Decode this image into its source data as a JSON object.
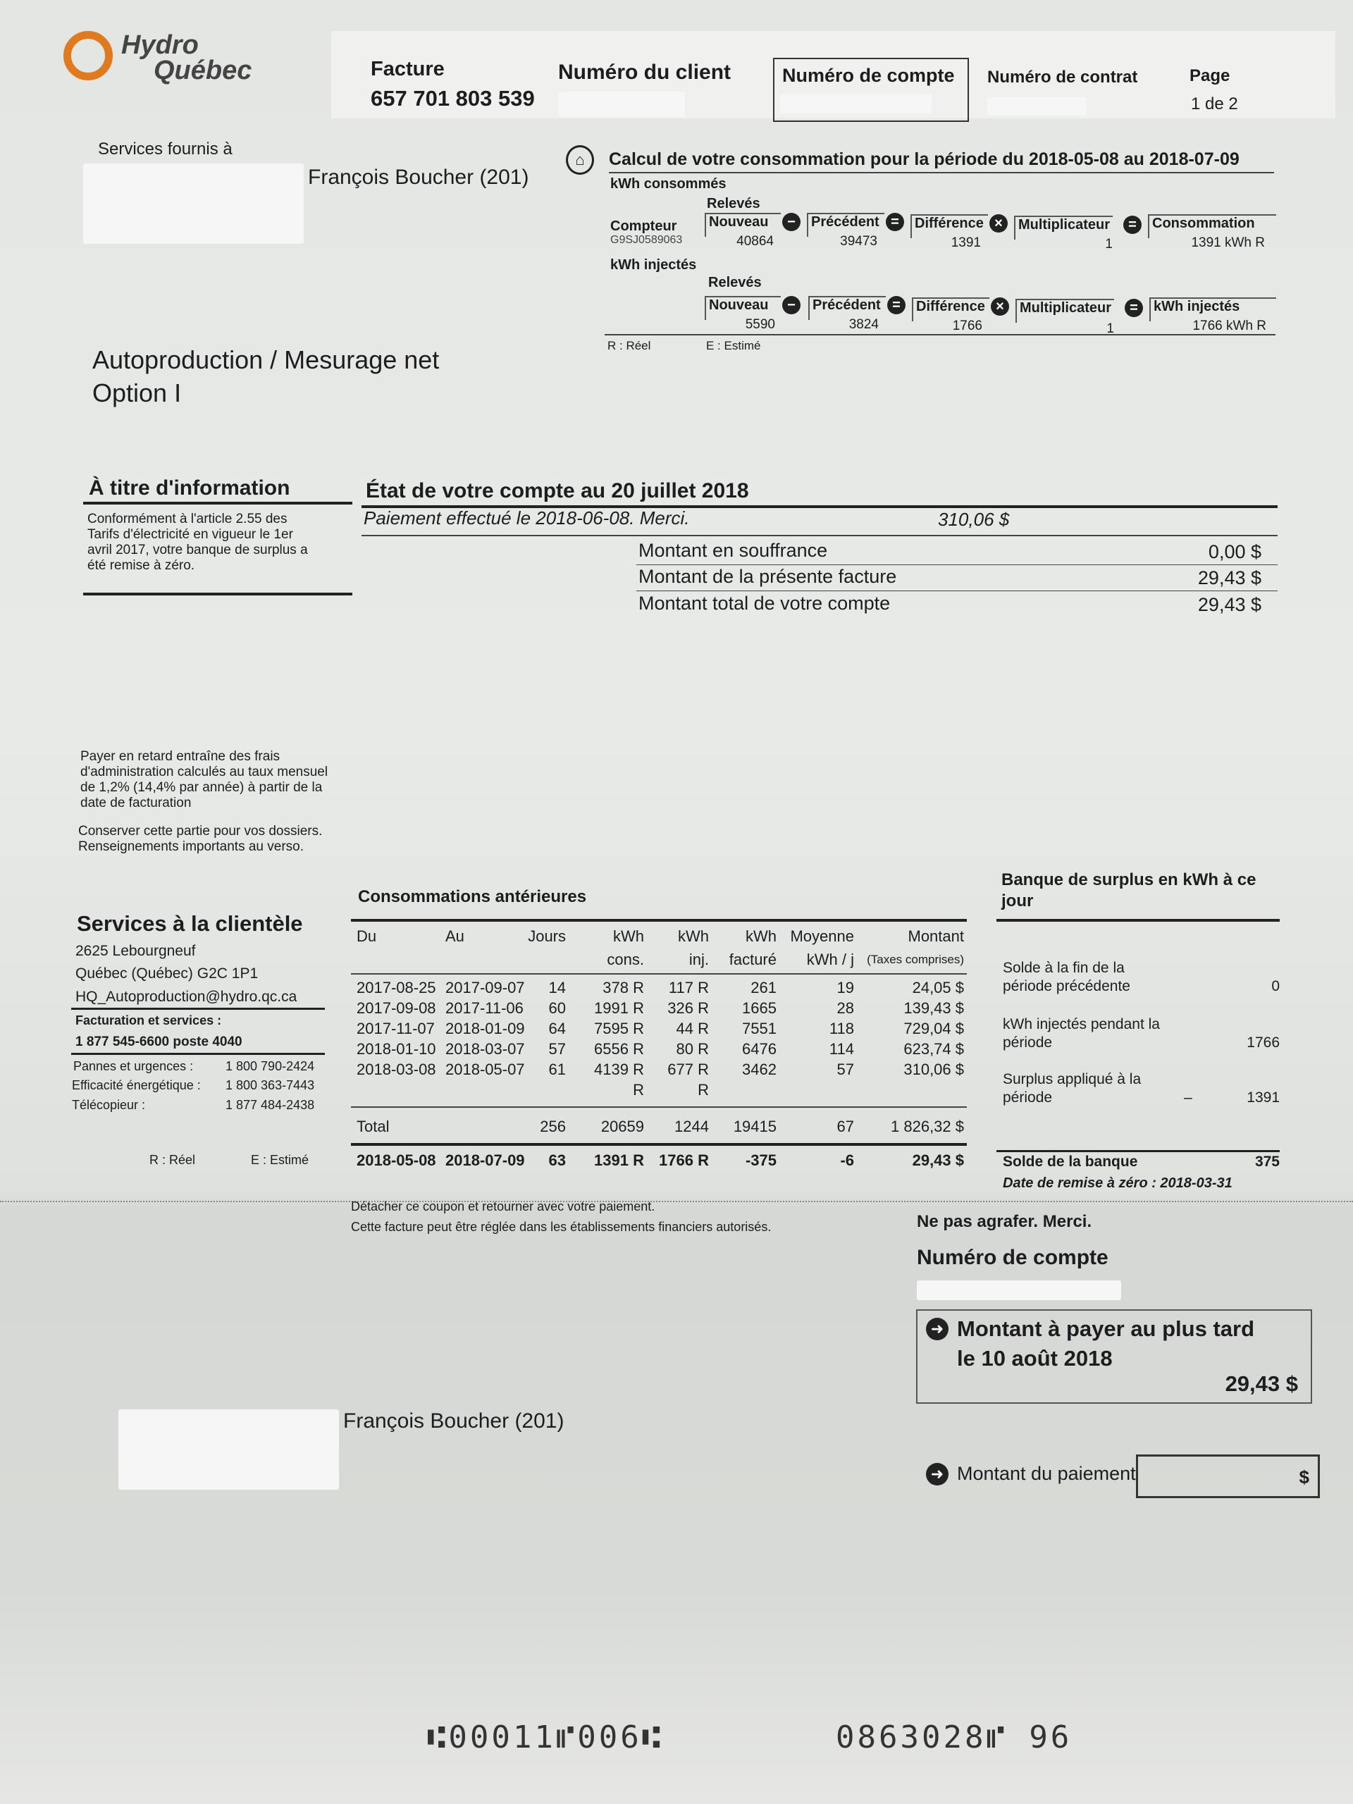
{
  "brand": {
    "line1": "Hydro",
    "line2": "Québec",
    "accent": "#e07a1e"
  },
  "header": {
    "facture_label": "Facture",
    "facture_number": "657 701 803 539",
    "client_label": "Numéro du client",
    "account_label": "Numéro de compte",
    "contract_label": "Numéro de contrat",
    "page_label": "Page",
    "page_value": "1 de 2"
  },
  "services": {
    "label": "Services fournis à",
    "name": "François Boucher (201)"
  },
  "calc": {
    "title": "Calcul de votre consommation pour la période du 2018-05-08 au 2018-07-09",
    "consumed_label": "kWh consommés",
    "injected_label": "kWh injectés",
    "releves": "Relevés",
    "meter_label": "Compteur",
    "meter_id": "G9SJ0589063",
    "cols": {
      "new": "Nouveau",
      "prev": "Précédent",
      "diff": "Différence",
      "mult": "Multiplicateur",
      "cons": "Consommation",
      "inj": "kWh injectés"
    },
    "consumed": {
      "new": "40864",
      "prev": "39473",
      "diff": "1391",
      "mult": "1",
      "result": "1391 kWh R"
    },
    "injected": {
      "new": "5590",
      "prev": "3824",
      "diff": "1766",
      "mult": "1",
      "result": "1766 kWh R"
    },
    "legend_r": "R : Réel",
    "legend_e": "E : Estimé"
  },
  "program": {
    "line1": "Autoproduction / Mesurage net",
    "line2": "Option I"
  },
  "info": {
    "title": "À titre d'information",
    "text": [
      "Conformément à l'article 2.55 des",
      "Tarifs d'électricité en vigueur le 1er",
      "avril 2017, votre banque de surplus a",
      "été remise à zéro."
    ]
  },
  "account_state": {
    "title": "État de votre compte au 20 juillet 2018",
    "payment_text": "Paiement effectué le 2018-06-08. Merci.",
    "payment_amount": "310,06 $",
    "rows": [
      {
        "label": "Montant en souffrance",
        "value": "0,00 $"
      },
      {
        "label": "Montant de la présente facture",
        "value": "29,43 $"
      },
      {
        "label": "Montant total de votre compte",
        "value": "29,43 $"
      }
    ]
  },
  "late_notice": [
    "Payer en retard entraîne des frais",
    "d'administration calculés au taux mensuel",
    "de 1,2% (14,4% par année) à partir de la",
    "date de facturation"
  ],
  "keep_notice": [
    "Conserver cette partie pour vos dossiers.",
    "Renseignements importants au verso."
  ],
  "customer_service": {
    "title": "Services à la clientèle",
    "address": [
      "2625 Lebourgneuf",
      "Québec (Québec) G2C 1P1",
      "HQ_Autoproduction@hydro.qc.ca"
    ],
    "billing_label": "Facturation et services :",
    "billing_phone": "1 877 545-6600 poste 4040",
    "phones": [
      {
        "label": "Pannes et urgences :",
        "number": "1 800 790-2424"
      },
      {
        "label": "Efficacité énergétique :",
        "number": "1 800 363-7443"
      },
      {
        "label": "Télécopieur :",
        "number": "1 877 484-2438"
      }
    ],
    "legend_r": "R : Réel",
    "legend_e": "E : Estimé"
  },
  "history": {
    "title": "Consommations antérieures",
    "headers": {
      "du": "Du",
      "au": "Au",
      "jours": "Jours",
      "cons1": "kWh",
      "cons2": "cons.",
      "inj1": "kWh",
      "inj2": "inj.",
      "fact1": "kWh",
      "fact2": "facturé",
      "moy1": "Moyenne",
      "moy2": "kWh / j",
      "mont1": "Montant",
      "mont2": "(Taxes comprises)"
    },
    "rows": [
      [
        "2017-08-25",
        "2017-09-07",
        "14",
        "378 R",
        "117 R",
        "261",
        "19",
        "24,05 $"
      ],
      [
        "2017-09-08",
        "2017-11-06",
        "60",
        "1991 R",
        "326 R",
        "1665",
        "28",
        "139,43 $"
      ],
      [
        "2017-11-07",
        "2018-01-09",
        "64",
        "7595 R",
        "44 R",
        "7551",
        "118",
        "729,04 $"
      ],
      [
        "2018-01-10",
        "2018-03-07",
        "57",
        "6556 R",
        "80 R",
        "6476",
        "114",
        "623,74 $"
      ],
      [
        "2018-03-08",
        "2018-05-07",
        "61",
        "4139 R",
        "677 R",
        "3462",
        "57",
        "310,06 $"
      ],
      [
        "",
        "",
        "",
        "R",
        "R",
        "",
        "",
        ""
      ]
    ],
    "total": [
      "Total",
      "",
      "256",
      "20659",
      "1244",
      "19415",
      "67",
      "1 826,32 $"
    ],
    "current": [
      "2018-05-08",
      "2018-07-09",
      "63",
      "1391 R",
      "1766 R",
      "-375",
      "-6",
      "29,43 $"
    ]
  },
  "bank": {
    "title": "Banque de surplus en kWh à ce jour",
    "rows": [
      {
        "l1": "Solde à la fin de la",
        "l2": "période précédente",
        "sign": "",
        "value": "0"
      },
      {
        "l1": "kWh injectés pendant la",
        "l2": "période",
        "sign": "",
        "value": "1766"
      },
      {
        "l1": "Surplus appliqué à la",
        "l2": "période",
        "sign": "–",
        "value": "1391"
      }
    ],
    "balance_label": "Solde de la banque",
    "balance_value": "375",
    "reset_text": "Date de remise à zéro : 2018-03-31"
  },
  "coupon": {
    "detach": "Détacher ce coupon et retourner avec votre paiement.",
    "institutions": "Cette facture peut être réglée dans les établissements financiers autorisés.",
    "no_staple": "Ne pas agrafer. Merci.",
    "account_label": "Numéro de compte",
    "due_line1": "Montant à payer au plus tard",
    "due_line2": "le 10 août 2018",
    "due_amount": "29,43 $",
    "name": "François Boucher (201)",
    "payment_label": "Montant du paiement",
    "payment_currency": "$",
    "micr1": "⑆00011⑈006⑆",
    "micr2": "0863028⑈ 96"
  }
}
